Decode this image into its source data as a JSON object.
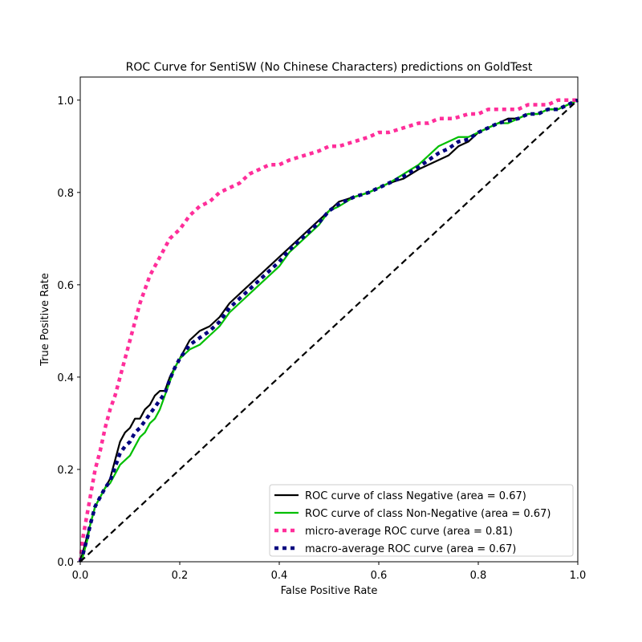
{
  "chart_data": {
    "type": "line",
    "title": "ROC Curve for SentiSW (No Chinese Characters) predictions on GoldTest",
    "xlabel": "False Positive Rate",
    "ylabel": "True Positive Rate",
    "xlim": [
      0.0,
      1.0
    ],
    "ylim": [
      0.0,
      1.05
    ],
    "x_ticks": [
      "0.0",
      "0.2",
      "0.4",
      "0.6",
      "0.8",
      "1.0"
    ],
    "y_ticks": [
      "0.0",
      "0.2",
      "0.4",
      "0.6",
      "0.8",
      "1.0"
    ],
    "grid": false,
    "legend_position": "bottom-right",
    "series": [
      {
        "name": "ROC curve of class Negative (area = 0.67)",
        "color": "#000000",
        "style": "solid",
        "x": [
          0.0,
          0.005,
          0.01,
          0.015,
          0.02,
          0.03,
          0.04,
          0.05,
          0.06,
          0.07,
          0.08,
          0.09,
          0.1,
          0.11,
          0.12,
          0.13,
          0.14,
          0.15,
          0.16,
          0.17,
          0.18,
          0.19,
          0.2,
          0.21,
          0.22,
          0.24,
          0.26,
          0.28,
          0.3,
          0.32,
          0.34,
          0.36,
          0.38,
          0.4,
          0.42,
          0.44,
          0.46,
          0.48,
          0.5,
          0.52,
          0.55,
          0.58,
          0.6,
          0.62,
          0.65,
          0.68,
          0.7,
          0.72,
          0.74,
          0.76,
          0.78,
          0.8,
          0.82,
          0.84,
          0.86,
          0.88,
          0.9,
          0.92,
          0.94,
          0.96,
          0.98,
          1.0
        ],
        "y": [
          0.0,
          0.02,
          0.04,
          0.06,
          0.08,
          0.12,
          0.14,
          0.16,
          0.18,
          0.22,
          0.26,
          0.28,
          0.29,
          0.31,
          0.31,
          0.33,
          0.34,
          0.36,
          0.37,
          0.37,
          0.4,
          0.42,
          0.44,
          0.46,
          0.48,
          0.5,
          0.51,
          0.53,
          0.56,
          0.58,
          0.6,
          0.62,
          0.64,
          0.66,
          0.68,
          0.7,
          0.72,
          0.74,
          0.76,
          0.78,
          0.79,
          0.8,
          0.81,
          0.82,
          0.83,
          0.85,
          0.86,
          0.87,
          0.88,
          0.9,
          0.91,
          0.93,
          0.94,
          0.95,
          0.96,
          0.96,
          0.97,
          0.97,
          0.98,
          0.98,
          0.99,
          1.0
        ]
      },
      {
        "name": "ROC curve of class Non-Negative (area = 0.67)",
        "color": "#00bf00",
        "style": "solid",
        "x": [
          0.0,
          0.005,
          0.01,
          0.015,
          0.02,
          0.03,
          0.04,
          0.05,
          0.06,
          0.07,
          0.08,
          0.09,
          0.1,
          0.11,
          0.12,
          0.13,
          0.14,
          0.15,
          0.16,
          0.17,
          0.18,
          0.19,
          0.2,
          0.21,
          0.22,
          0.24,
          0.26,
          0.28,
          0.3,
          0.32,
          0.34,
          0.36,
          0.38,
          0.4,
          0.42,
          0.44,
          0.46,
          0.48,
          0.5,
          0.52,
          0.55,
          0.58,
          0.6,
          0.62,
          0.65,
          0.68,
          0.7,
          0.72,
          0.74,
          0.76,
          0.78,
          0.8,
          0.82,
          0.84,
          0.86,
          0.88,
          0.9,
          0.92,
          0.94,
          0.96,
          0.98,
          1.0
        ],
        "y": [
          0.0,
          0.01,
          0.03,
          0.05,
          0.08,
          0.12,
          0.14,
          0.16,
          0.17,
          0.19,
          0.21,
          0.22,
          0.23,
          0.25,
          0.27,
          0.28,
          0.3,
          0.31,
          0.33,
          0.36,
          0.39,
          0.42,
          0.44,
          0.45,
          0.46,
          0.47,
          0.49,
          0.51,
          0.54,
          0.56,
          0.58,
          0.6,
          0.62,
          0.64,
          0.67,
          0.69,
          0.71,
          0.73,
          0.76,
          0.77,
          0.79,
          0.8,
          0.81,
          0.82,
          0.84,
          0.86,
          0.88,
          0.9,
          0.91,
          0.92,
          0.92,
          0.93,
          0.94,
          0.95,
          0.95,
          0.96,
          0.97,
          0.97,
          0.98,
          0.98,
          0.99,
          1.0
        ]
      },
      {
        "name": "micro-average ROC curve (area = 0.81)",
        "color": "#ff2e9a",
        "style": "dotted",
        "x": [
          0.0,
          0.005,
          0.01,
          0.015,
          0.02,
          0.025,
          0.03,
          0.04,
          0.05,
          0.06,
          0.07,
          0.08,
          0.09,
          0.1,
          0.11,
          0.12,
          0.13,
          0.14,
          0.15,
          0.16,
          0.17,
          0.18,
          0.2,
          0.22,
          0.24,
          0.26,
          0.28,
          0.3,
          0.32,
          0.34,
          0.36,
          0.38,
          0.4,
          0.42,
          0.45,
          0.48,
          0.5,
          0.52,
          0.55,
          0.58,
          0.6,
          0.62,
          0.65,
          0.68,
          0.7,
          0.72,
          0.75,
          0.78,
          0.8,
          0.82,
          0.85,
          0.88,
          0.9,
          0.92,
          0.94,
          0.96,
          0.98,
          1.0
        ],
        "y": [
          0.0,
          0.05,
          0.08,
          0.11,
          0.14,
          0.17,
          0.2,
          0.24,
          0.29,
          0.33,
          0.36,
          0.4,
          0.44,
          0.48,
          0.52,
          0.56,
          0.59,
          0.62,
          0.64,
          0.66,
          0.68,
          0.7,
          0.72,
          0.75,
          0.77,
          0.78,
          0.8,
          0.81,
          0.82,
          0.84,
          0.85,
          0.86,
          0.86,
          0.87,
          0.88,
          0.89,
          0.9,
          0.9,
          0.91,
          0.92,
          0.93,
          0.93,
          0.94,
          0.95,
          0.95,
          0.96,
          0.96,
          0.97,
          0.97,
          0.98,
          0.98,
          0.98,
          0.99,
          0.99,
          0.99,
          1.0,
          1.0,
          1.0
        ]
      },
      {
        "name": "macro-average ROC curve (area = 0.67)",
        "color": "#00007f",
        "style": "dotted",
        "x": [
          0.0,
          0.005,
          0.01,
          0.015,
          0.02,
          0.03,
          0.04,
          0.05,
          0.06,
          0.07,
          0.08,
          0.09,
          0.1,
          0.11,
          0.12,
          0.13,
          0.14,
          0.15,
          0.16,
          0.17,
          0.18,
          0.19,
          0.2,
          0.21,
          0.22,
          0.24,
          0.26,
          0.28,
          0.3,
          0.32,
          0.34,
          0.36,
          0.38,
          0.4,
          0.42,
          0.44,
          0.46,
          0.48,
          0.5,
          0.52,
          0.55,
          0.58,
          0.6,
          0.62,
          0.65,
          0.68,
          0.7,
          0.72,
          0.74,
          0.76,
          0.78,
          0.8,
          0.82,
          0.84,
          0.86,
          0.88,
          0.9,
          0.92,
          0.94,
          0.96,
          0.98,
          1.0
        ],
        "y": [
          0.0,
          0.015,
          0.035,
          0.055,
          0.08,
          0.12,
          0.14,
          0.16,
          0.175,
          0.205,
          0.235,
          0.25,
          0.26,
          0.28,
          0.29,
          0.305,
          0.32,
          0.335,
          0.35,
          0.365,
          0.395,
          0.42,
          0.44,
          0.455,
          0.47,
          0.485,
          0.5,
          0.52,
          0.55,
          0.57,
          0.59,
          0.61,
          0.63,
          0.65,
          0.675,
          0.695,
          0.715,
          0.735,
          0.76,
          0.775,
          0.79,
          0.8,
          0.81,
          0.82,
          0.835,
          0.855,
          0.87,
          0.885,
          0.895,
          0.91,
          0.915,
          0.93,
          0.94,
          0.95,
          0.955,
          0.96,
          0.97,
          0.97,
          0.98,
          0.98,
          0.99,
          1.0
        ]
      },
      {
        "name": "",
        "color": "#000000",
        "style": "dashed",
        "x": [
          0.0,
          1.0
        ],
        "y": [
          0.0,
          1.0
        ]
      }
    ]
  }
}
